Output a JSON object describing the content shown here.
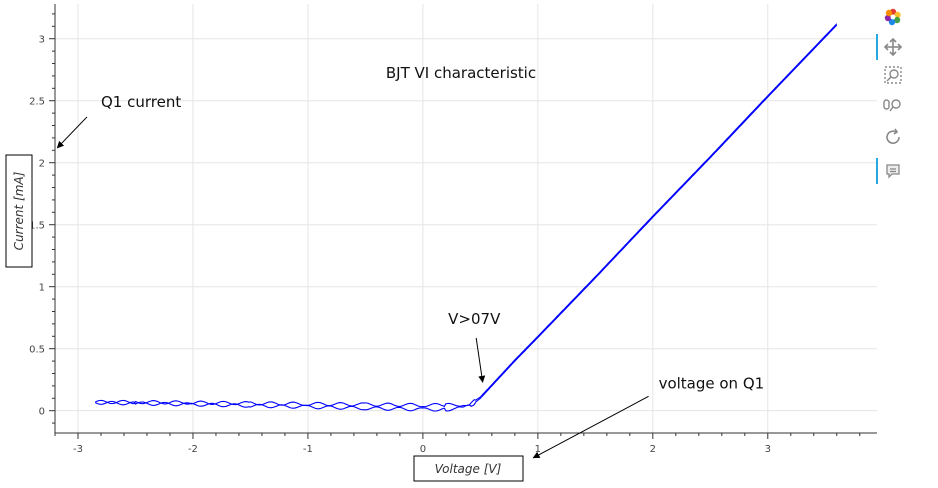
{
  "chart_data": {
    "type": "line",
    "title": "BJT  VI characteristic",
    "xlabel": "Voltage [V]",
    "ylabel": "Current [mA]",
    "xlim": [
      -3.2,
      3.95
    ],
    "ylim": [
      -0.18,
      3.28
    ],
    "xticks": [
      -3,
      -2,
      -1,
      0,
      1,
      2,
      3
    ],
    "yticks": [
      0,
      0.5,
      1,
      1.5,
      2,
      2.5,
      3
    ],
    "xtick_labels": [
      "-3",
      "-2",
      "-1",
      "0",
      "1",
      "2",
      "3"
    ],
    "ytick_labels": [
      "0",
      "0.5",
      "1",
      "1.5",
      "2",
      "2.5",
      "3"
    ],
    "grid": true,
    "series": [
      {
        "color": "#0000ff",
        "x": [
          -2.85,
          -2.5,
          -2.0,
          -1.5,
          -1.0,
          -0.5,
          0.0,
          0.2,
          0.35,
          0.42,
          0.5,
          0.6,
          0.8,
          1.0,
          1.5,
          2.0,
          2.5,
          3.0,
          3.6
        ],
        "y": [
          0.065,
          0.058,
          0.05,
          0.04,
          0.03,
          0.02,
          0.01,
          0.01,
          0.02,
          0.04,
          0.1,
          0.2,
          0.4,
          0.59,
          1.07,
          1.56,
          2.04,
          2.53,
          3.11
        ]
      },
      {
        "color": "#0000ff",
        "x": [
          -2.85,
          -2.5,
          -2.0,
          -1.5,
          -1.0,
          -0.5,
          0.0,
          0.2,
          0.35,
          0.42,
          0.5,
          0.6,
          0.8,
          1.0,
          1.5,
          2.0,
          2.5,
          3.0,
          3.6
        ],
        "y": [
          0.07,
          0.07,
          0.065,
          0.06,
          0.055,
          0.05,
          0.045,
          0.045,
          0.05,
          0.06,
          0.11,
          0.21,
          0.41,
          0.6,
          1.08,
          1.57,
          2.05,
          2.54,
          3.12
        ]
      }
    ],
    "annotations": [
      {
        "text": "Q1 current",
        "xy": [
          -3.18,
          2.12
        ],
        "xytext": [
          -2.8,
          2.45
        ]
      },
      {
        "text": "V>07V",
        "xy": [
          0.52,
          0.23
        ],
        "xytext": [
          0.22,
          0.7
        ]
      },
      {
        "text": "voltage on Q1",
        "xy": [
          0.96,
          -0.38
        ],
        "xytext": [
          2.05,
          0.18
        ]
      }
    ]
  },
  "toolbar": {
    "icons": [
      "bokeh-logo-icon",
      "pan-icon",
      "box-zoom-icon",
      "wheel-zoom-icon",
      "reset-icon",
      "hover-icon"
    ]
  }
}
